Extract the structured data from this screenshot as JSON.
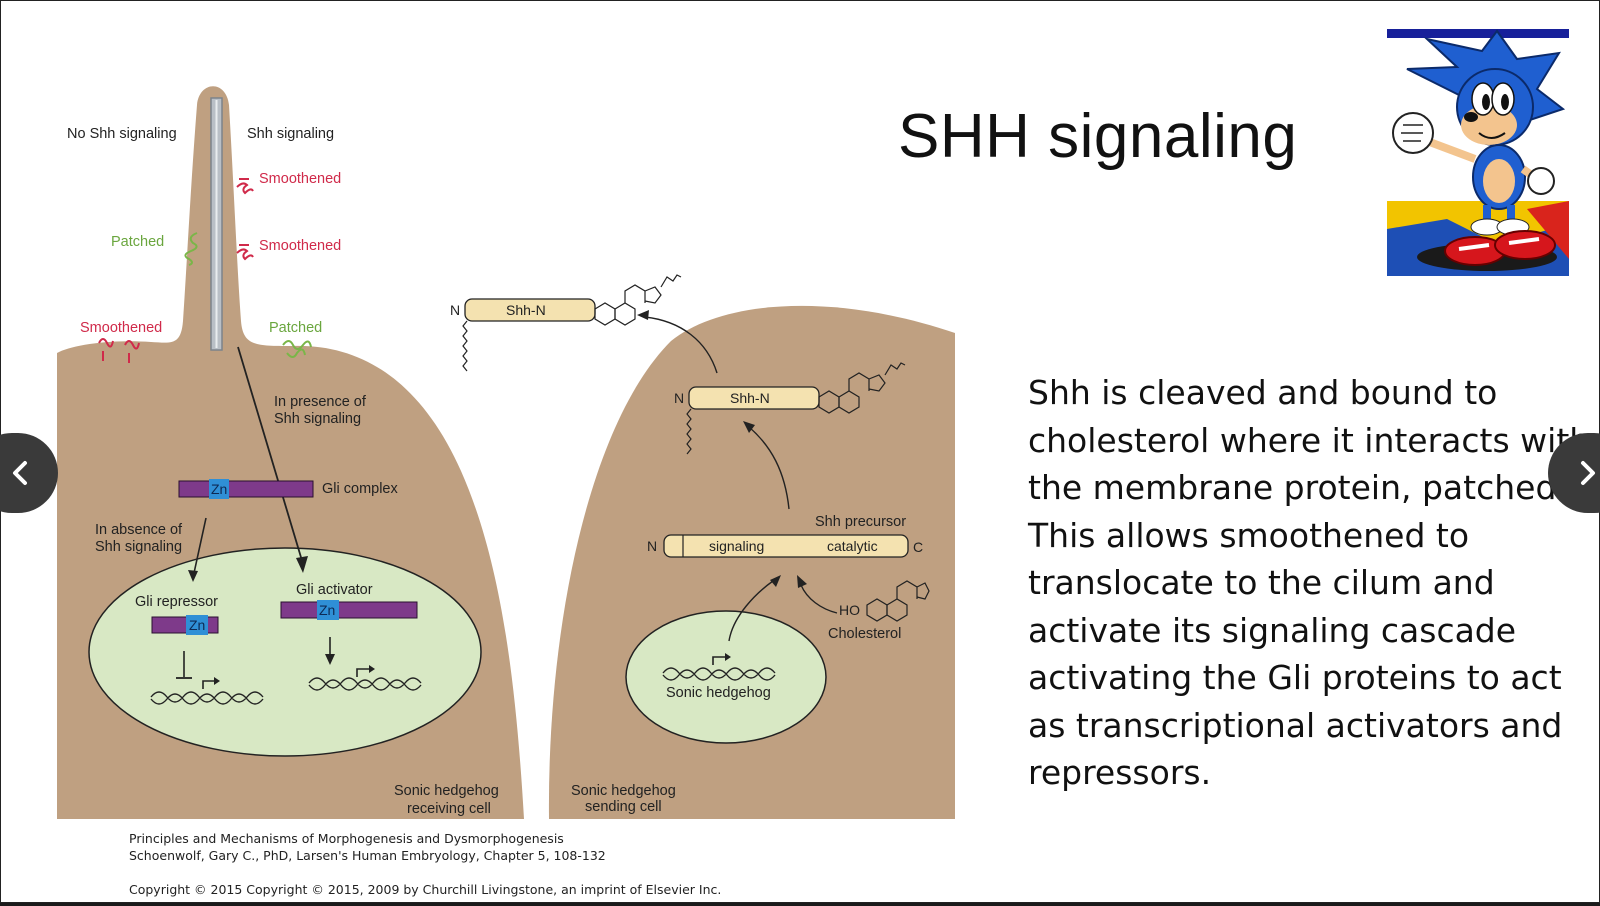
{
  "slide": {
    "title": "SHH signaling",
    "body_lines": [
      "Shh is cleaved and bound to",
      "cholesterol where it interacts with",
      "the membrane protein, patched.",
      "This allows smoothened to",
      "translocate to the cilum and",
      "activate its signaling cascade",
      "activating the Gli proteins to act",
      "as transcriptional activators and",
      "repressors."
    ],
    "citation_line1": "Principles and Mechanisms of Morphogenesis and Dysmorphogenesis",
    "citation_line2": "Schoenwolf, Gary C., PhD, Larsen's Human Embryology, Chapter 5, 108-132",
    "copyright": "Copyright ©  2015   Copyright © 2015, 2009 by Churchill Livingstone, an imprint of Elsevier Inc."
  },
  "diagram": {
    "labels": {
      "no_shh": "No Shh signaling",
      "shh": "Shh signaling",
      "smoothened": "Smoothened",
      "patched": "Patched",
      "in_presence": [
        "In presence of",
        "Shh signaling"
      ],
      "in_absence": [
        "In absence of",
        "Shh signaling"
      ],
      "gli_complex": "Gli complex",
      "gli_repressor": "Gli repressor",
      "gli_activator": "Gli activator",
      "zn": "Zn",
      "receiving_cell": [
        "Sonic hedgehog",
        "receiving cell"
      ],
      "sending_cell": [
        "Sonic hedgehog",
        "sending cell"
      ],
      "shh_n": "Shh-N",
      "n": "N",
      "c": "C",
      "shh_precursor": "Shh precursor",
      "signaling": "signaling",
      "catalytic": "catalytic",
      "ho": "HO",
      "cholesterol": "Cholesterol",
      "sonic_hedgehog": "Sonic hedgehog"
    },
    "colors": {
      "cell": "#bfa081",
      "nucleus": "#d8e8c4",
      "protein_bar": "#7e3a8a",
      "zinc": "#2f8fd6",
      "shh_protein": "#f4e2b0",
      "smoothened": "#d02a4a",
      "patched": "#7ab648"
    }
  },
  "icons": {
    "prev": "chevron-left-icon",
    "next": "chevron-right-icon",
    "character": "sonic-hedgehog-image"
  }
}
